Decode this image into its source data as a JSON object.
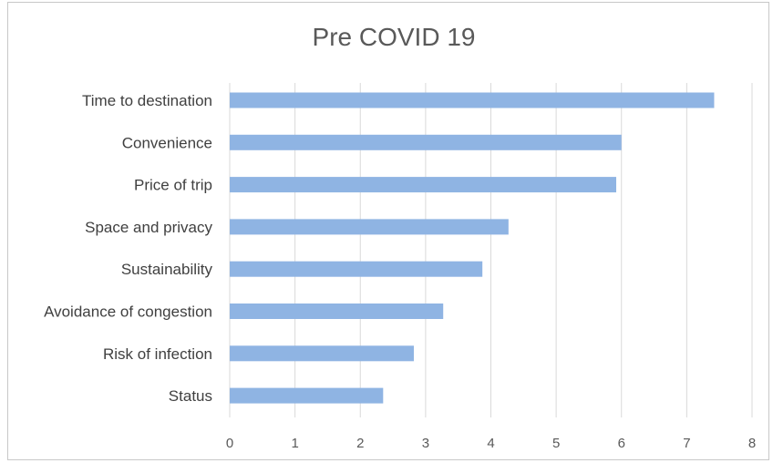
{
  "chart_data": {
    "type": "bar",
    "orientation": "horizontal",
    "title": "Pre COVID 19",
    "xlabel": "",
    "ylabel": "",
    "categories": [
      "Time to destination",
      "Convenience",
      "Price of trip",
      "Space and privacy",
      "Sustainability",
      "Avoidance of congestion",
      "Risk of infection",
      "Status"
    ],
    "values": [
      7.42,
      6.0,
      5.92,
      4.27,
      3.87,
      3.27,
      2.82,
      2.35
    ],
    "xlim": [
      0,
      8
    ],
    "xticks": [
      "0",
      "1",
      "2",
      "3",
      "4",
      "5",
      "6",
      "7",
      "8"
    ],
    "grid": "vertical",
    "legend": "none",
    "bar_color": "#8fb4e3"
  }
}
